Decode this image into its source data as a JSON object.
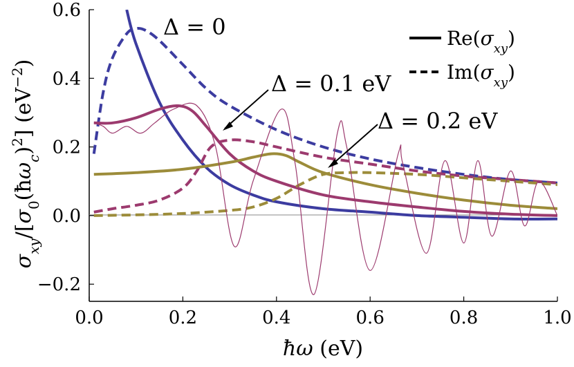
{
  "chart_data": {
    "type": "line",
    "xlabel": "ħω (eV)",
    "ylabel": "σxy/[σ0(ħωc)²] (eV⁻²)",
    "xlim": [
      0.0,
      1.0
    ],
    "ylim": [
      -0.25,
      0.6
    ],
    "xticks": [
      0.0,
      0.2,
      0.4,
      0.6,
      0.8,
      1.0
    ],
    "xtick_labels": [
      "0.0",
      "0.2",
      "0.4",
      "0.6",
      "0.8",
      "1.0"
    ],
    "yticks": [
      -0.2,
      0.0,
      0.2,
      0.4,
      0.6
    ],
    "ytick_labels": [
      "−0.2",
      "0.0",
      "0.2",
      "0.4",
      "0.6"
    ],
    "zero_line": true,
    "grid": false,
    "legend_position": "top-right",
    "legend": [
      {
        "label": "Re(σxy)",
        "style": "solid"
      },
      {
        "label": "Im(σxy)",
        "style": "dashed"
      }
    ],
    "annotations": [
      {
        "text": "Δ = 0",
        "arrow_to": null
      },
      {
        "text": "Δ = 0.1 eV",
        "arrow_to": [
          0.29,
          0.22
        ]
      },
      {
        "text": "Δ = 0.2 eV",
        "arrow_to": [
          0.5,
          0.13
        ]
      }
    ],
    "colors": {
      "gap0": "#3c3ca0",
      "gap01": "#9c3a6e",
      "gap02": "#9c8c3a"
    },
    "series": [
      {
        "gap": "Δ = 0",
        "part": "Re",
        "style": "solid",
        "color": "#3c3ca0",
        "x": [
          0.08,
          0.1,
          0.15,
          0.2,
          0.25,
          0.3,
          0.35,
          0.4,
          0.5,
          0.6,
          0.7,
          0.8,
          0.9,
          1.0
        ],
        "y": [
          0.6,
          0.5,
          0.33,
          0.22,
          0.14,
          0.09,
          0.06,
          0.04,
          0.02,
          0.01,
          0.0,
          -0.005,
          -0.01,
          -0.01
        ]
      },
      {
        "gap": "Δ = 0",
        "part": "Im",
        "style": "dashed",
        "color": "#3c3ca0",
        "x": [
          0.01,
          0.03,
          0.05,
          0.08,
          0.1,
          0.12,
          0.15,
          0.2,
          0.25,
          0.3,
          0.4,
          0.5,
          0.6,
          0.7,
          0.8,
          0.9,
          1.0
        ],
        "y": [
          0.18,
          0.36,
          0.46,
          0.53,
          0.545,
          0.54,
          0.51,
          0.44,
          0.37,
          0.32,
          0.25,
          0.2,
          0.165,
          0.14,
          0.12,
          0.105,
          0.095
        ]
      },
      {
        "gap": "Δ = 0.1 eV",
        "part": "Re",
        "style": "solid",
        "color": "#9c3a6e",
        "x": [
          0.01,
          0.05,
          0.1,
          0.15,
          0.19,
          0.22,
          0.25,
          0.3,
          0.35,
          0.4,
          0.5,
          0.6,
          0.7,
          0.8,
          0.9,
          1.0
        ],
        "y": [
          0.27,
          0.27,
          0.285,
          0.31,
          0.32,
          0.305,
          0.26,
          0.18,
          0.13,
          0.1,
          0.06,
          0.04,
          0.025,
          0.012,
          0.004,
          0.0
        ]
      },
      {
        "gap": "Δ = 0.1 eV",
        "part": "Im",
        "style": "dashed",
        "color": "#9c3a6e",
        "x": [
          0.01,
          0.05,
          0.1,
          0.15,
          0.2,
          0.23,
          0.26,
          0.3,
          0.35,
          0.4,
          0.5,
          0.6,
          0.7,
          0.8,
          0.9,
          1.0
        ],
        "y": [
          0.01,
          0.02,
          0.03,
          0.045,
          0.08,
          0.13,
          0.2,
          0.22,
          0.215,
          0.2,
          0.17,
          0.15,
          0.13,
          0.115,
          0.105,
          0.095
        ]
      },
      {
        "gap": "Δ = 0.2 eV",
        "part": "Re",
        "style": "solid",
        "color": "#9c8c3a",
        "x": [
          0.01,
          0.1,
          0.2,
          0.3,
          0.35,
          0.39,
          0.42,
          0.45,
          0.5,
          0.6,
          0.7,
          0.8,
          0.9,
          1.0
        ],
        "y": [
          0.12,
          0.125,
          0.135,
          0.155,
          0.17,
          0.18,
          0.175,
          0.155,
          0.125,
          0.09,
          0.065,
          0.045,
          0.03,
          0.02
        ]
      },
      {
        "gap": "Δ = 0.2 eV",
        "part": "Im",
        "style": "dashed",
        "color": "#9c8c3a",
        "x": [
          0.01,
          0.1,
          0.2,
          0.3,
          0.35,
          0.4,
          0.45,
          0.5,
          0.55,
          0.6,
          0.7,
          0.8,
          0.9,
          1.0
        ],
        "y": [
          0.0,
          0.002,
          0.006,
          0.015,
          0.025,
          0.05,
          0.09,
          0.12,
          0.125,
          0.125,
          0.12,
          0.11,
          0.1,
          0.09
        ]
      },
      {
        "gap": "Δ = 0.1 eV",
        "part": "Re",
        "style": "thin",
        "color": "#9c3a6e",
        "x": [
          0.01,
          0.03,
          0.05,
          0.08,
          0.11,
          0.14,
          0.18,
          0.23,
          0.27,
          0.31,
          0.35,
          0.41,
          0.44,
          0.48,
          0.53,
          0.55,
          0.6,
          0.66,
          0.67,
          0.72,
          0.76,
          0.8,
          0.83,
          0.86,
          0.9,
          0.93,
          0.96,
          1.0
        ],
        "y": [
          0.27,
          0.26,
          0.24,
          0.26,
          0.24,
          0.27,
          0.31,
          0.32,
          0.2,
          -0.09,
          0.1,
          0.31,
          0.15,
          -0.23,
          0.24,
          0.2,
          -0.16,
          0.18,
          0.15,
          -0.11,
          0.16,
          -0.08,
          0.16,
          -0.06,
          0.13,
          -0.03,
          0.1,
          0.0
        ]
      }
    ]
  }
}
